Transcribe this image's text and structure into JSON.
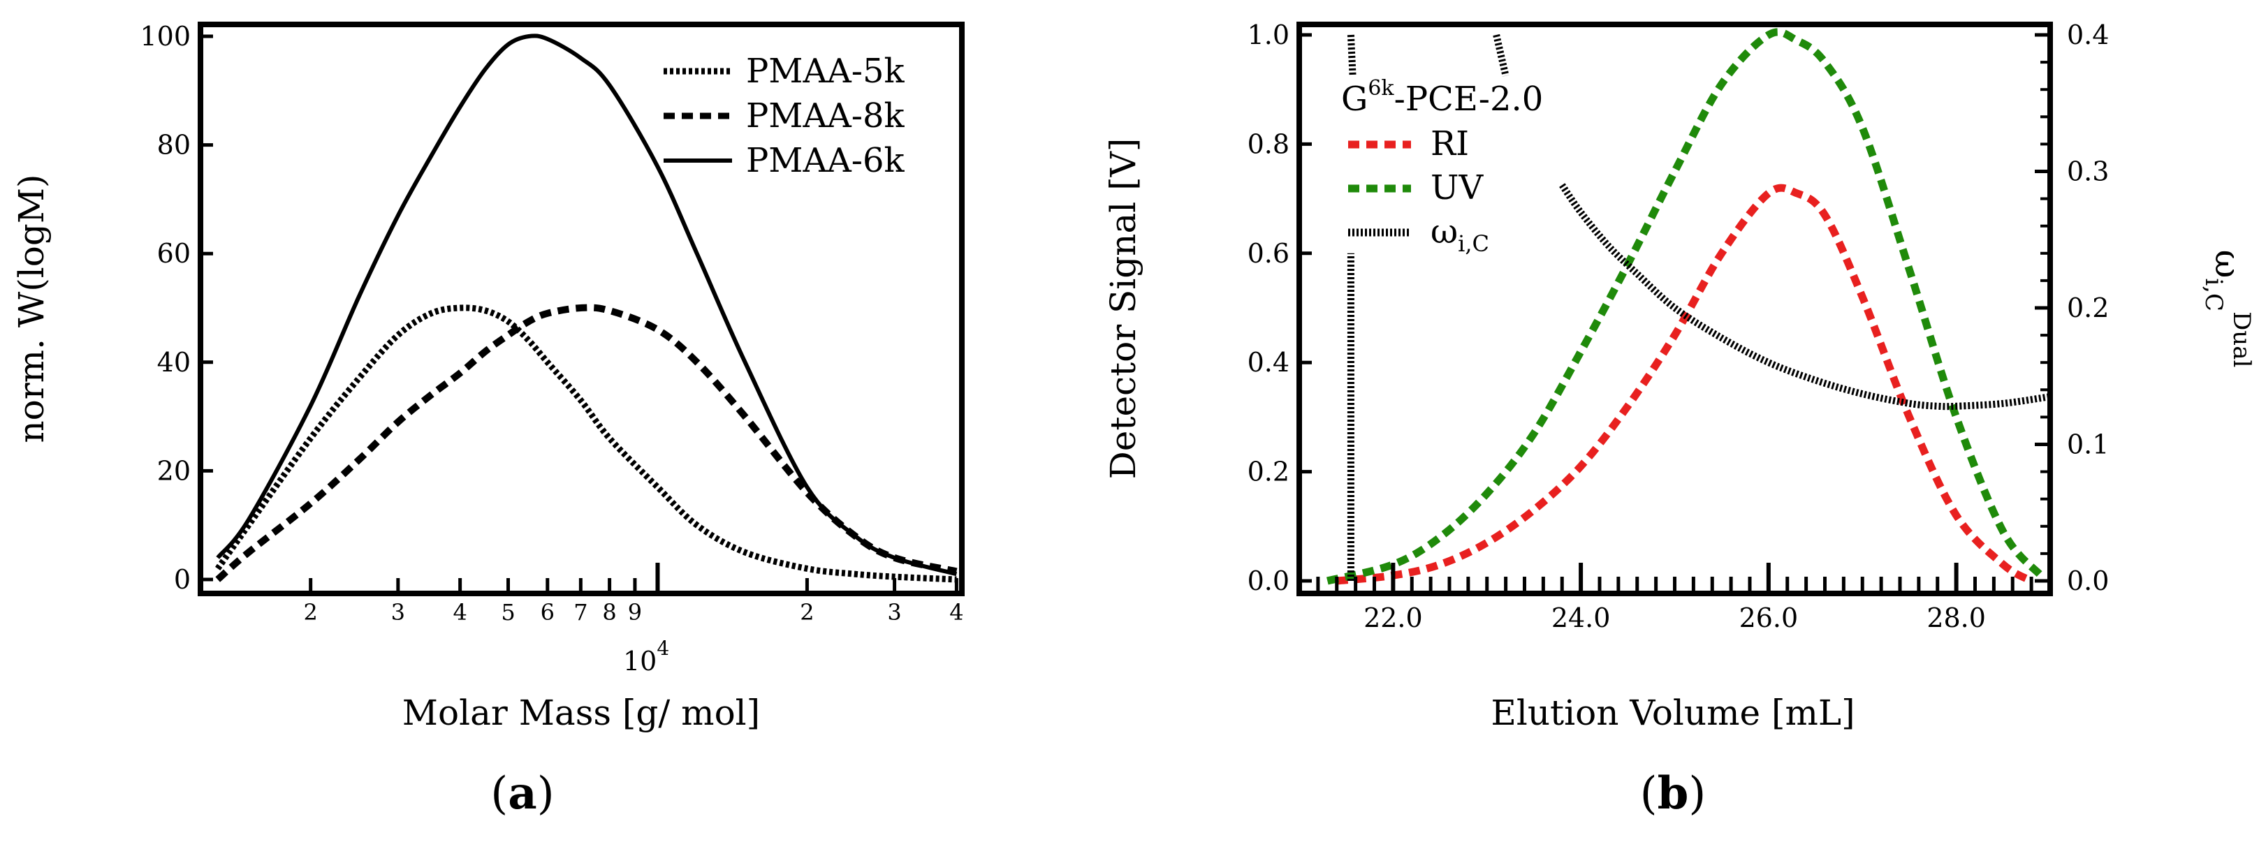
{
  "chart_data": [
    {
      "id": "a",
      "type": "line",
      "panel_label": "a",
      "xlabel": "Molar Mass [g/ mol]",
      "ylabel": "norm. W(logM)",
      "xscale": "log",
      "xlim": [
        1200,
        41000
      ],
      "ylim": [
        0,
        100
      ],
      "y_ticks": [
        0,
        20,
        40,
        60,
        80,
        100
      ],
      "x_tick_labels": [
        {
          "value": 2000,
          "label": "2"
        },
        {
          "value": 3000,
          "label": "3"
        },
        {
          "value": 4000,
          "label": "4"
        },
        {
          "value": 5000,
          "label": "5"
        },
        {
          "value": 6000,
          "label": "6"
        },
        {
          "value": 7000,
          "label": "7"
        },
        {
          "value": 8000,
          "label": "8"
        },
        {
          "value": 9000,
          "label": "9"
        },
        {
          "value": 20000,
          "label": "2"
        },
        {
          "value": 30000,
          "label": "3"
        },
        {
          "value": 40000,
          "label": "4"
        }
      ],
      "decade_label": {
        "base": "10",
        "exponent": "4"
      },
      "legend_position": "top-right",
      "series": [
        {
          "name": "PMAA-5k",
          "style": "dotted",
          "color": "#000000",
          "x": [
            1300,
            1500,
            2000,
            2500,
            3000,
            3500,
            4000,
            4500,
            5000,
            5500,
            6000,
            7000,
            8000,
            10000,
            12000,
            15000,
            20000,
            25000,
            30000,
            40000
          ],
          "y": [
            2,
            10,
            26,
            37,
            45,
            49,
            50,
            49.5,
            47.5,
            44,
            40,
            33,
            26,
            17,
            10,
            5,
            2,
            1,
            0.5,
            0
          ]
        },
        {
          "name": "PMAA-8k",
          "style": "dashed",
          "color": "#000000",
          "x": [
            1300,
            1500,
            2000,
            2500,
            3000,
            3500,
            4000,
            4500,
            5000,
            5500,
            6000,
            7000,
            8000,
            10000,
            12000,
            15000,
            20000,
            25000,
            30000,
            40000
          ],
          "y": [
            0,
            5,
            14,
            22,
            29,
            34,
            38,
            42,
            45,
            47.5,
            49,
            50,
            49.5,
            46,
            40,
            30,
            16,
            8,
            4,
            1.5
          ]
        },
        {
          "name": "PMAA-6k",
          "style": "solid",
          "color": "#000000",
          "x": [
            1300,
            1500,
            2000,
            2500,
            3000,
            3500,
            4000,
            4500,
            5000,
            5500,
            6000,
            7000,
            8000,
            10000,
            12000,
            15000,
            20000,
            25000,
            30000,
            40000
          ],
          "y": [
            4,
            11,
            32,
            52,
            67,
            78,
            87,
            94,
            98.5,
            100,
            99.5,
            96,
            91,
            76,
            60,
            40,
            17,
            8,
            4,
            1
          ]
        }
      ]
    },
    {
      "id": "b",
      "type": "line",
      "panel_label": "b",
      "xlabel": "Elution Volume [mL]",
      "ylabel": "Detector Signal [V]",
      "y2label_main": "ω",
      "y2label_sub": "i,C",
      "y2label_sup": "Dual",
      "xlim": [
        21.0,
        29.0
      ],
      "ylim": [
        0.0,
        1.0
      ],
      "y2lim": [
        0.0,
        0.4
      ],
      "x_ticks": [
        "22.0",
        "24.0",
        "26.0",
        "28.0"
      ],
      "x_tick_values": [
        22,
        24,
        26,
        28
      ],
      "y_ticks": [
        "0.0",
        "0.2",
        "0.4",
        "0.6",
        "0.8",
        "1.0"
      ],
      "y_tick_values": [
        0,
        0.2,
        0.4,
        0.6,
        0.8,
        1.0
      ],
      "y2_ticks": [
        "0.0",
        "0.1",
        "0.2",
        "0.3",
        "0.4"
      ],
      "y2_tick_values": [
        0,
        0.1,
        0.2,
        0.3,
        0.4
      ],
      "legend_title": {
        "base": "G",
        "sup": "6k",
        "rest": "-PCE-2.0"
      },
      "legend_position": "top-left",
      "series": [
        {
          "name": "RI",
          "style": "dashed",
          "color": "#e8201f",
          "axis": "left",
          "x": [
            21.4,
            22.0,
            22.5,
            23.0,
            23.5,
            24.0,
            24.5,
            25.0,
            25.5,
            26.0,
            26.3,
            26.6,
            27.0,
            27.5,
            28.0,
            28.5,
            28.8
          ],
          "y": [
            0.0,
            0.01,
            0.03,
            0.07,
            0.13,
            0.21,
            0.32,
            0.45,
            0.6,
            0.71,
            0.71,
            0.67,
            0.52,
            0.3,
            0.12,
            0.03,
            0.0
          ]
        },
        {
          "name": "UV",
          "style": "dashed",
          "color": "#1f8a0a",
          "axis": "left",
          "x": [
            21.3,
            22.0,
            22.5,
            23.0,
            23.5,
            24.0,
            24.5,
            25.0,
            25.5,
            26.0,
            26.3,
            26.6,
            27.0,
            27.5,
            28.0,
            28.5,
            28.9
          ],
          "y": [
            0.0,
            0.03,
            0.08,
            0.16,
            0.27,
            0.42,
            0.58,
            0.75,
            0.91,
            1.0,
            0.99,
            0.95,
            0.83,
            0.57,
            0.3,
            0.09,
            0.01
          ]
        },
        {
          "name": "ω",
          "sub": "i,C",
          "style": "hatched",
          "color": "#000000",
          "axis": "right",
          "x": [
            23.8,
            24.0,
            24.3,
            24.6,
            25.0,
            25.5,
            26.0,
            26.5,
            27.0,
            27.5,
            27.8,
            28.0,
            28.5,
            29.0
          ],
          "y": [
            0.29,
            0.27,
            0.245,
            0.225,
            0.2,
            0.178,
            0.16,
            0.147,
            0.137,
            0.13,
            0.128,
            0.128,
            0.13,
            0.135
          ]
        },
        {
          "name": "spike",
          "style": "hatched",
          "color": "#000000",
          "axis": "right",
          "legend": false,
          "x": [
            21.55,
            21.55
          ],
          "y": [
            0.0,
            0.24
          ]
        },
        {
          "name": "top-fragment-1",
          "style": "hatched",
          "color": "#000000",
          "axis": "right",
          "legend": false,
          "x": [
            21.55,
            21.57
          ],
          "y": [
            0.4,
            0.37
          ]
        },
        {
          "name": "top-fragment-2",
          "style": "hatched",
          "color": "#000000",
          "axis": "right",
          "legend": false,
          "x": [
            23.1,
            23.2
          ],
          "y": [
            0.4,
            0.37
          ]
        }
      ]
    }
  ]
}
